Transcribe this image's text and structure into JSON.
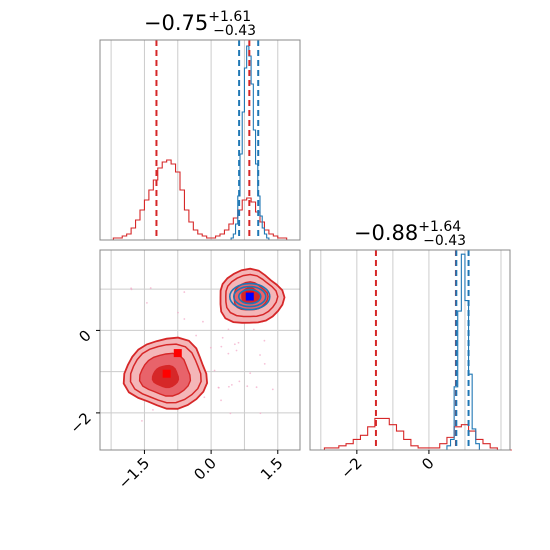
{
  "chart_data": {
    "type": "corner",
    "title_params": [
      {
        "value": "−0.75",
        "plus": "+1.61",
        "minus": "−0.43"
      },
      {
        "value": "−0.88",
        "plus": "+1.64",
        "minus": "−0.43"
      }
    ],
    "x_ticks": [
      "−1.5",
      "0.0",
      "1.5"
    ],
    "y_ticks": [
      "0",
      "−2"
    ],
    "x2_ticks": [
      "−2",
      "0"
    ],
    "x_range": [
      -2.5,
      2.0
    ],
    "y_range": [
      -2.9,
      1.95
    ],
    "y2_range": [
      -3.3,
      2.25
    ],
    "grid": true,
    "colors": {
      "red": "#d62728",
      "blue": "#1f77b4",
      "grid": "#cccccc",
      "red_fill_light": "#f4b6b8",
      "red_fill_mid": "#e8636a"
    },
    "series": [
      {
        "color": "red",
        "param1_quantiles": [
          -1.23,
          0.86
        ],
        "param2_quantiles": [
          -1.47,
          0.75
        ],
        "modes": [
          [
            -1.0,
            -1.1
          ],
          [
            0.87,
            0.85
          ]
        ],
        "hist_param1": {
          "x": [
            -2.5,
            -2.4,
            -2.3,
            -2.2,
            -2.1,
            -2.0,
            -1.9,
            -1.8,
            -1.7,
            -1.6,
            -1.5,
            -1.4,
            -1.3,
            -1.2,
            -1.1,
            -1.0,
            -0.9,
            -0.8,
            -0.7,
            -0.6,
            -0.5,
            -0.4,
            -0.3,
            -0.2,
            -0.1,
            0.0,
            0.1,
            0.2,
            0.3,
            0.4,
            0.5,
            0.6,
            0.7,
            0.8,
            0.9,
            1.0,
            1.1,
            1.2,
            1.3,
            1.4,
            1.5,
            1.6,
            1.7,
            1.8,
            1.9
          ],
          "y": [
            0,
            0,
            0,
            0.01,
            0.01,
            0.02,
            0.03,
            0.06,
            0.1,
            0.15,
            0.2,
            0.25,
            0.3,
            0.36,
            0.39,
            0.4,
            0.38,
            0.34,
            0.25,
            0.15,
            0.09,
            0.05,
            0.03,
            0.02,
            0.01,
            0.01,
            0.02,
            0.03,
            0.05,
            0.08,
            0.11,
            0.15,
            0.2,
            0.21,
            0.19,
            0.14,
            0.09,
            0.05,
            0.03,
            0.02,
            0.01,
            0.01,
            0,
            0,
            0
          ]
        },
        "hist_param2": {
          "x": [
            -3.3,
            -3.1,
            -2.9,
            -2.7,
            -2.5,
            -2.3,
            -2.1,
            -1.9,
            -1.7,
            -1.5,
            -1.3,
            -1.1,
            -0.9,
            -0.7,
            -0.5,
            -0.3,
            -0.1,
            0.1,
            0.3,
            0.5,
            0.7,
            0.9,
            1.1,
            1.3,
            1.5,
            1.7,
            1.9,
            2.1
          ],
          "y": [
            0,
            0,
            0.01,
            0.01,
            0.02,
            0.03,
            0.05,
            0.07,
            0.11,
            0.15,
            0.15,
            0.12,
            0.09,
            0.05,
            0.02,
            0.01,
            0.01,
            0.01,
            0.03,
            0.06,
            0.11,
            0.12,
            0.09,
            0.05,
            0.03,
            0.01,
            0,
            0
          ]
        }
      },
      {
        "color": "blue",
        "param1_quantiles": [
          0.63,
          1.06
        ],
        "param2_quantiles": [
          0.76,
          1.1
        ],
        "modes": [
          [
            0.87,
            0.82
          ]
        ],
        "hist_param1": {
          "x": [
            0.45,
            0.5,
            0.55,
            0.6,
            0.65,
            0.7,
            0.75,
            0.8,
            0.85,
            0.9,
            0.95,
            1.0,
            1.05,
            1.1,
            1.15,
            1.2,
            1.25,
            1.3
          ],
          "y": [
            0.01,
            0.03,
            0.08,
            0.22,
            0.43,
            0.64,
            0.86,
            0.97,
            0.92,
            0.78,
            0.55,
            0.38,
            0.22,
            0.12,
            0.06,
            0.03,
            0.01,
            0
          ]
        },
        "hist_param2": {
          "x": [
            0.5,
            0.6,
            0.7,
            0.8,
            0.9,
            1.0,
            1.1,
            1.2,
            1.3,
            1.4
          ],
          "y": [
            0.02,
            0.05,
            0.3,
            0.66,
            0.93,
            0.71,
            0.36,
            0.1,
            0.03,
            0
          ]
        }
      }
    ]
  }
}
